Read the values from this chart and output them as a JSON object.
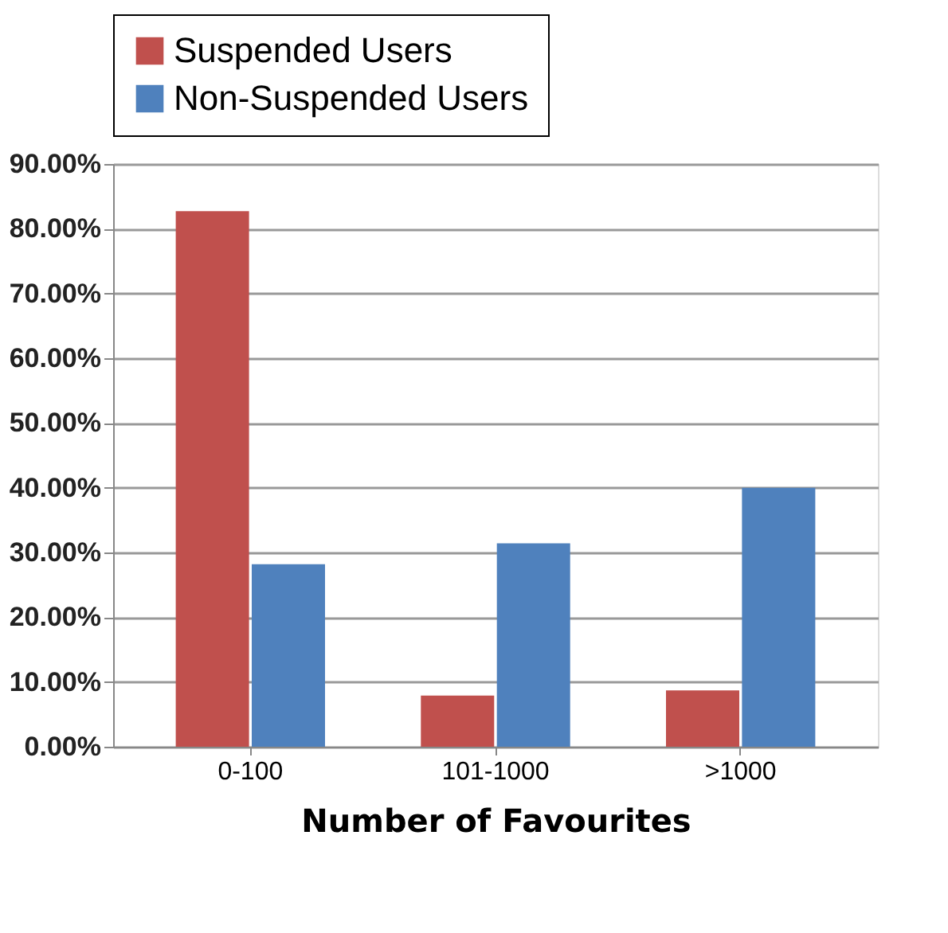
{
  "chart_data": {
    "type": "bar",
    "xlabel": "Number of Favourites",
    "categories": [
      "0-100",
      "101-1000",
      ">1000"
    ],
    "series": [
      {
        "name": "Suspended Users",
        "color": "#c0504d",
        "values": [
          82.7,
          7.9,
          8.7
        ]
      },
      {
        "name": "Non-Suspended Users",
        "color": "#4f81bd",
        "values": [
          28.2,
          31.4,
          40.0
        ]
      }
    ],
    "ylim": [
      0,
      90
    ],
    "yticks": [
      {
        "value": 0,
        "label": "0.00%"
      },
      {
        "value": 10,
        "label": "10.00%"
      },
      {
        "value": 20,
        "label": "20.00%"
      },
      {
        "value": 30,
        "label": "30.00%"
      },
      {
        "value": 40,
        "label": "40.00%"
      },
      {
        "value": 50,
        "label": "50.00%"
      },
      {
        "value": 60,
        "label": "60.00%"
      },
      {
        "value": 70,
        "label": "70.00%"
      },
      {
        "value": 80,
        "label": "80.00%"
      },
      {
        "value": 90,
        "label": "90.00%"
      }
    ],
    "grid": "y",
    "legend": "top"
  }
}
